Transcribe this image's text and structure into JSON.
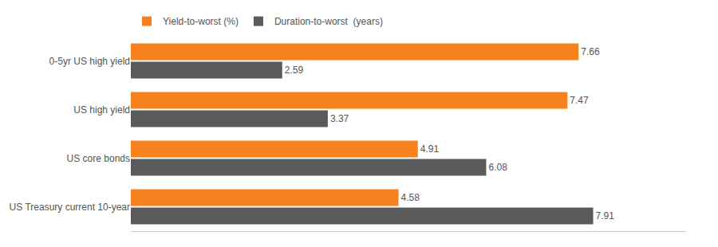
{
  "chart_data": {
    "type": "bar",
    "orientation": "horizontal",
    "categories": [
      "0-5yr US high yield",
      "US high yield",
      "US core bonds",
      "US Treasury current 10-year"
    ],
    "series": [
      {
        "name": "Yield-to-worst (%)",
        "color": "#F5821E",
        "values": [
          7.66,
          7.47,
          4.91,
          4.58
        ]
      },
      {
        "name": "Duration-to-worst  (years)",
        "color": "#5A5A5A",
        "values": [
          2.59,
          3.37,
          6.08,
          7.91
        ]
      }
    ],
    "xlim": [
      0,
      9.5
    ],
    "data_labels": true,
    "tick_labels": "y",
    "legend": "top left",
    "grid": false
  }
}
